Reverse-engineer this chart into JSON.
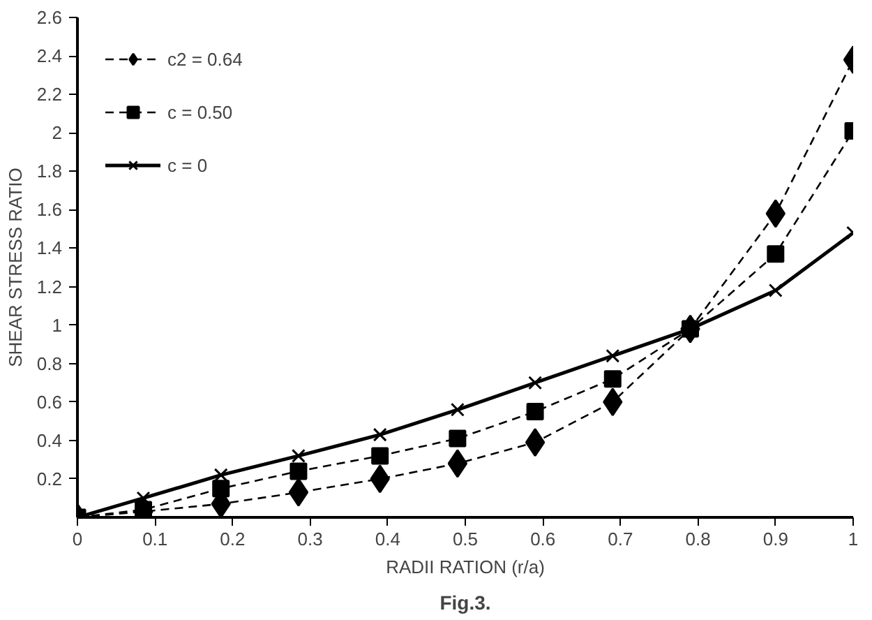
{
  "chart_data": {
    "type": "line",
    "xlabel": "RADII RATION (r/a)",
    "ylabel": "SHEAR STRESS RATIO",
    "annotations": [
      "Fig.3."
    ],
    "x": [
      0,
      0.085,
      0.185,
      0.285,
      0.39,
      0.49,
      0.59,
      0.69,
      0.79,
      0.9,
      1.0
    ],
    "xlim": [
      0,
      1
    ],
    "xticks": [
      0,
      0.1,
      0.2,
      0.3,
      0.4,
      0.5,
      0.6,
      0.7,
      0.8,
      0.9,
      1
    ],
    "ylim": [
      0,
      2.6
    ],
    "yticks": [
      0.2,
      0.4,
      0.6,
      0.8,
      1,
      1.2,
      1.4,
      1.6,
      1.8,
      2,
      2.2,
      2.4,
      2.6
    ],
    "grid": false,
    "legend": "top left",
    "series": [
      {
        "name": "c2 = 0.64",
        "color": "#000000",
        "marker": "diamond",
        "line_style": "dashed",
        "values": [
          0,
          0.03,
          0.07,
          0.13,
          0.2,
          0.28,
          0.39,
          0.6,
          0.98,
          1.58,
          2.38
        ]
      },
      {
        "name": "c = 0.50",
        "color": "#000000",
        "marker": "square",
        "line_style": "dashed",
        "values": [
          0,
          0.04,
          0.15,
          0.24,
          0.32,
          0.41,
          0.55,
          0.72,
          0.98,
          1.37,
          2.01
        ]
      },
      {
        "name": "c = 0",
        "color": "#000000",
        "marker": "cross",
        "line_style": "solid",
        "values": [
          0,
          0.1,
          0.22,
          0.32,
          0.43,
          0.56,
          0.7,
          0.84,
          0.98,
          1.18,
          1.48
        ]
      }
    ]
  }
}
